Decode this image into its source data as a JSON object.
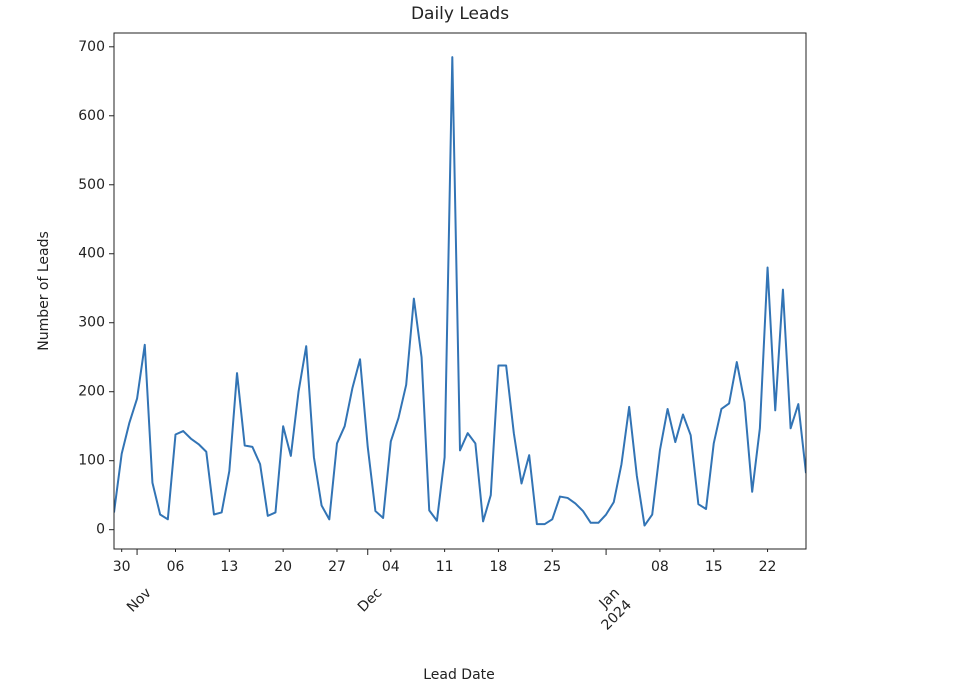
{
  "chart_data": {
    "type": "line",
    "title": "Daily Leads",
    "x_label": "Lead Date",
    "y_label": "Number of Leads",
    "xlim": [
      "2023-10-29",
      "2024-01-27"
    ],
    "ylim": [
      -28,
      720
    ],
    "yticks": [
      0,
      100,
      200,
      300,
      400,
      500,
      600,
      700
    ],
    "xticks": [
      {
        "value": "2023-10-30",
        "label": "30"
      },
      {
        "value": "2023-11-06",
        "label": "06"
      },
      {
        "value": "2023-11-13",
        "label": "13"
      },
      {
        "value": "2023-11-20",
        "label": "20"
      },
      {
        "value": "2023-11-27",
        "label": "27"
      },
      {
        "value": "2023-12-04",
        "label": "04"
      },
      {
        "value": "2023-12-11",
        "label": "11"
      },
      {
        "value": "2023-12-18",
        "label": "18"
      },
      {
        "value": "2023-12-25",
        "label": "25"
      },
      {
        "value": "2024-01-08",
        "label": "08"
      },
      {
        "value": "2024-01-15",
        "label": "15"
      },
      {
        "value": "2024-01-22",
        "label": "22"
      }
    ],
    "xticks_major": [
      {
        "value": "2023-11-01",
        "label": "Nov"
      },
      {
        "value": "2023-12-01",
        "label": "Dec"
      },
      {
        "value": "2024-01-01",
        "label": "Jan\n2024"
      }
    ],
    "x": [
      "2023-10-29",
      "2023-10-30",
      "2023-10-31",
      "2023-11-01",
      "2023-11-02",
      "2023-11-03",
      "2023-11-04",
      "2023-11-05",
      "2023-11-06",
      "2023-11-07",
      "2023-11-08",
      "2023-11-09",
      "2023-11-10",
      "2023-11-11",
      "2023-11-12",
      "2023-11-13",
      "2023-11-14",
      "2023-11-15",
      "2023-11-16",
      "2023-11-17",
      "2023-11-18",
      "2023-11-19",
      "2023-11-20",
      "2023-11-21",
      "2023-11-22",
      "2023-11-23",
      "2023-11-24",
      "2023-11-25",
      "2023-11-26",
      "2023-11-27",
      "2023-11-28",
      "2023-11-29",
      "2023-11-30",
      "2023-12-01",
      "2023-12-02",
      "2023-12-03",
      "2023-12-04",
      "2023-12-05",
      "2023-12-06",
      "2023-12-07",
      "2023-12-08",
      "2023-12-09",
      "2023-12-10",
      "2023-12-11",
      "2023-12-12",
      "2023-12-13",
      "2023-12-14",
      "2023-12-15",
      "2023-12-16",
      "2023-12-17",
      "2023-12-18",
      "2023-12-19",
      "2023-12-20",
      "2023-12-21",
      "2023-12-22",
      "2023-12-23",
      "2023-12-24",
      "2023-12-25",
      "2023-12-26",
      "2023-12-27",
      "2023-12-28",
      "2023-12-29",
      "2023-12-30",
      "2023-12-31",
      "2024-01-01",
      "2024-01-02",
      "2024-01-03",
      "2024-01-04",
      "2024-01-05",
      "2024-01-06",
      "2024-01-07",
      "2024-01-08",
      "2024-01-09",
      "2024-01-10",
      "2024-01-11",
      "2024-01-12",
      "2024-01-13",
      "2024-01-14",
      "2024-01-15",
      "2024-01-16",
      "2024-01-17",
      "2024-01-18",
      "2024-01-19",
      "2024-01-20",
      "2024-01-21",
      "2024-01-22",
      "2024-01-23",
      "2024-01-24",
      "2024-01-25",
      "2024-01-26",
      "2024-01-27"
    ],
    "series": [
      {
        "color": "#3274b5",
        "values": [
          25,
          110,
          155,
          190,
          268,
          68,
          22,
          15,
          138,
          143,
          132,
          124,
          113,
          22,
          25,
          85,
          227,
          122,
          120,
          95,
          20,
          25,
          150,
          107,
          200,
          266,
          105,
          35,
          15,
          125,
          150,
          205,
          247,
          120,
          27,
          17,
          128,
          162,
          210,
          335,
          250,
          28,
          13,
          105,
          685,
          115,
          140,
          125,
          12,
          50,
          238,
          238,
          140,
          67,
          108,
          8,
          8,
          15,
          48,
          46,
          38,
          27,
          10,
          10,
          22,
          40,
          95,
          178,
          78,
          6,
          22,
          115,
          175,
          127,
          167,
          137,
          37,
          30,
          125,
          175,
          183,
          243,
          185,
          55,
          147,
          380,
          173,
          348,
          147,
          182,
          82
        ]
      }
    ]
  }
}
